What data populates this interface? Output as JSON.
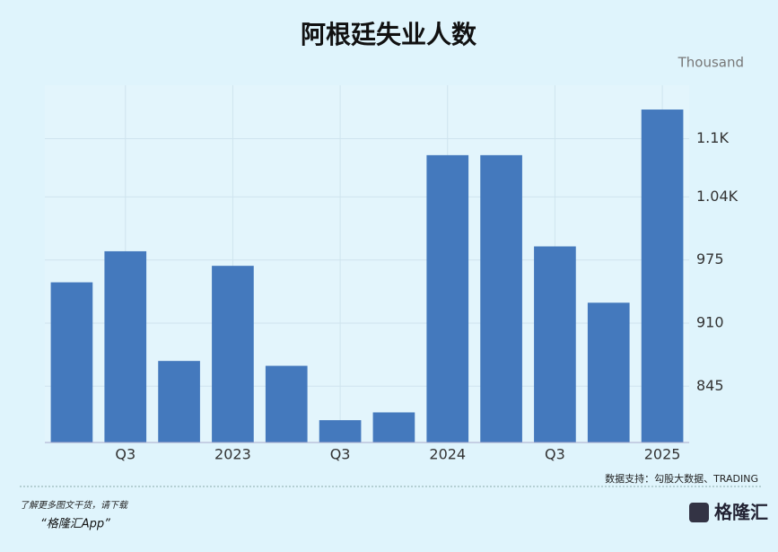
{
  "chart_data": {
    "type": "bar",
    "title": "阿根廷失业人数",
    "unit": "Thousand",
    "categories": [
      null,
      "Q3",
      null,
      "2023",
      null,
      "Q3",
      null,
      "2024",
      null,
      "Q3",
      null,
      "2025"
    ],
    "values": [
      952,
      984,
      871,
      969,
      866,
      810,
      818,
      1083,
      1083,
      989,
      931,
      1130
    ],
    "color": "#4479bd",
    "ylim": [
      787,
      1155
    ],
    "yticks": [
      845,
      910,
      975,
      {
        "value": 1040,
        "label": "1.04K"
      },
      {
        "value": 1100,
        "label": "1.1K"
      }
    ],
    "grid": true,
    "source": "数据支持：勾股大数据、TRADING"
  },
  "footer": {
    "line1": "了解更多图文干货，请下载",
    "line2": "“格隆汇App”",
    "logo": "格隆汇"
  }
}
